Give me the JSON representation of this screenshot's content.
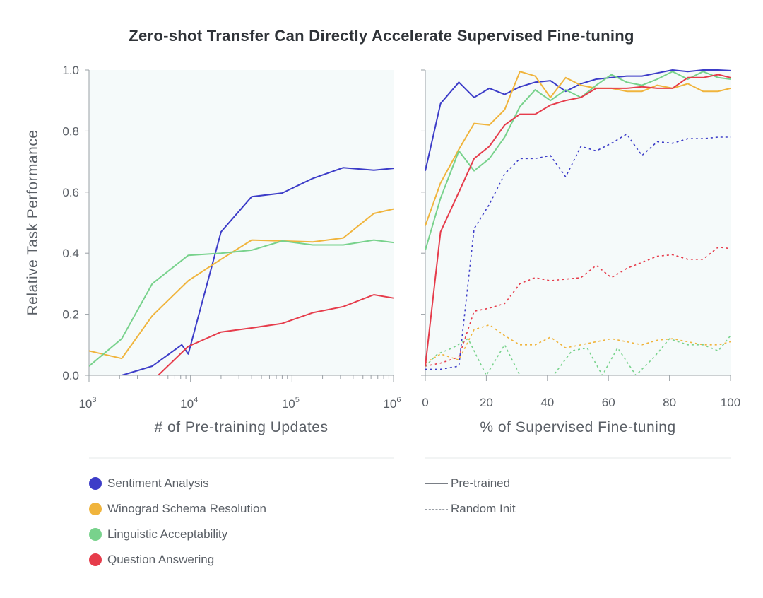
{
  "title": "Zero-shot Transfer Can Directly Accelerate Supervised Fine-tuning",
  "colors": {
    "sentiment": "#3c3cc8",
    "winograd": "#f0b43c",
    "linguistic": "#78d28c",
    "qa": "#e63c4b",
    "panel_bg": "#f5fafa",
    "axis": "#9aa0a6"
  },
  "chart_data": [
    {
      "type": "line",
      "panel": "left",
      "xscale": "log",
      "xlim": [
        1000,
        1000000
      ],
      "ylim": [
        0,
        1
      ],
      "xlabel": "# of Pre-training Updates",
      "ylabel": "Relative Task Performance",
      "xticks": [
        {
          "value": 1000,
          "base": "10",
          "exp": "3"
        },
        {
          "value": 10000,
          "base": "10",
          "exp": "4"
        },
        {
          "value": 100000,
          "base": "10",
          "exp": "5"
        },
        {
          "value": 1000000,
          "base": "10",
          "exp": "6"
        }
      ],
      "yticks": [
        "0.0",
        "0.2",
        "0.4",
        "0.6",
        "0.8",
        "1.0"
      ],
      "series": [
        {
          "name": "Sentiment Analysis",
          "key": "sentiment",
          "style": "solid",
          "x": [
            2100,
            4200,
            8200,
            9500,
            20000,
            40000,
            80000,
            160000,
            320000,
            640000,
            1000000
          ],
          "y": [
            0.0,
            0.03,
            0.1,
            0.07,
            0.47,
            0.585,
            0.597,
            0.645,
            0.68,
            0.672,
            0.678
          ]
        },
        {
          "name": "Winograd Schema Resolution",
          "key": "winograd",
          "style": "solid",
          "x": [
            1000,
            2100,
            4200,
            9500,
            20000,
            40000,
            80000,
            160000,
            320000,
            640000,
            1000000
          ],
          "y": [
            0.08,
            0.055,
            0.195,
            0.31,
            0.38,
            0.443,
            0.44,
            0.437,
            0.45,
            0.53,
            0.545
          ]
        },
        {
          "name": "Linguistic Acceptability",
          "key": "linguistic",
          "style": "solid",
          "x": [
            1000,
            2100,
            4200,
            9500,
            20000,
            40000,
            80000,
            160000,
            320000,
            640000,
            1000000
          ],
          "y": [
            0.03,
            0.12,
            0.3,
            0.393,
            0.4,
            0.41,
            0.44,
            0.427,
            0.427,
            0.443,
            0.435
          ]
        },
        {
          "name": "Question Answering",
          "key": "qa",
          "style": "solid",
          "x": [
            4800,
            9500,
            20000,
            40000,
            80000,
            160000,
            320000,
            640000,
            1000000
          ],
          "y": [
            0.0,
            0.095,
            0.142,
            0.155,
            0.17,
            0.205,
            0.225,
            0.264,
            0.253
          ]
        }
      ]
    },
    {
      "type": "line",
      "panel": "right",
      "xscale": "linear",
      "xlim": [
        0,
        100
      ],
      "ylim": [
        0,
        1
      ],
      "xlabel": "% of Supervised Fine-tuning",
      "xticks": [
        "0",
        "20",
        "40",
        "60",
        "80",
        "100"
      ],
      "series": [
        {
          "name": "Sentiment Analysis",
          "key": "sentiment",
          "style": "solid",
          "x": [
            0,
            5,
            11,
            16,
            21,
            26,
            31,
            36,
            41,
            46,
            51,
            56,
            61,
            66,
            71,
            76,
            81,
            86,
            91,
            96,
            100
          ],
          "y": [
            0.67,
            0.89,
            0.96,
            0.91,
            0.94,
            0.92,
            0.945,
            0.96,
            0.965,
            0.93,
            0.955,
            0.97,
            0.975,
            0.98,
            0.98,
            0.99,
            1.0,
            0.995,
            1.0,
            1.0,
            0.998
          ]
        },
        {
          "name": "Winograd Schema Resolution",
          "key": "winograd",
          "style": "solid",
          "x": [
            0,
            5,
            11,
            16,
            21,
            26,
            31,
            36,
            41,
            46,
            51,
            56,
            61,
            66,
            71,
            76,
            81,
            86,
            91,
            96,
            100
          ],
          "y": [
            0.49,
            0.63,
            0.74,
            0.825,
            0.82,
            0.87,
            0.995,
            0.98,
            0.91,
            0.975,
            0.95,
            0.94,
            0.94,
            0.93,
            0.93,
            0.95,
            0.94,
            0.955,
            0.93,
            0.93,
            0.94
          ]
        },
        {
          "name": "Linguistic Acceptability",
          "key": "linguistic",
          "style": "solid",
          "x": [
            0,
            5,
            11,
            16,
            21,
            26,
            31,
            36,
            41,
            46,
            51,
            56,
            61,
            66,
            71,
            76,
            81,
            86,
            91,
            96,
            100
          ],
          "y": [
            0.41,
            0.58,
            0.735,
            0.67,
            0.71,
            0.78,
            0.88,
            0.935,
            0.9,
            0.935,
            0.91,
            0.95,
            0.985,
            0.96,
            0.95,
            0.97,
            0.995,
            0.97,
            0.995,
            0.975,
            0.97
          ]
        },
        {
          "name": "Question Answering",
          "key": "qa",
          "style": "solid",
          "x": [
            0,
            5,
            11,
            16,
            21,
            26,
            31,
            36,
            41,
            46,
            51,
            56,
            61,
            66,
            71,
            76,
            81,
            86,
            91,
            96,
            100
          ],
          "y": [
            0.03,
            0.47,
            0.6,
            0.71,
            0.75,
            0.82,
            0.855,
            0.855,
            0.885,
            0.9,
            0.91,
            0.94,
            0.94,
            0.94,
            0.945,
            0.94,
            0.94,
            0.975,
            0.975,
            0.985,
            0.975
          ]
        },
        {
          "name": "Sentiment Analysis",
          "key": "sentiment",
          "style": "dashed",
          "x": [
            0,
            5,
            11,
            16,
            21,
            26,
            31,
            36,
            41,
            46,
            51,
            56,
            61,
            66,
            71,
            76,
            81,
            86,
            91,
            96,
            100
          ],
          "y": [
            0.02,
            0.02,
            0.03,
            0.48,
            0.56,
            0.66,
            0.71,
            0.71,
            0.72,
            0.65,
            0.75,
            0.735,
            0.76,
            0.79,
            0.72,
            0.765,
            0.76,
            0.775,
            0.775,
            0.78,
            0.78
          ]
        },
        {
          "name": "Question Answering",
          "key": "qa",
          "style": "dashed",
          "x": [
            0,
            5,
            11,
            16,
            21,
            26,
            31,
            36,
            41,
            46,
            51,
            56,
            61,
            66,
            71,
            76,
            81,
            86,
            91,
            96,
            100
          ],
          "y": [
            0.03,
            0.04,
            0.06,
            0.21,
            0.22,
            0.235,
            0.3,
            0.32,
            0.31,
            0.315,
            0.32,
            0.36,
            0.32,
            0.35,
            0.37,
            0.39,
            0.395,
            0.38,
            0.38,
            0.42,
            0.415
          ]
        },
        {
          "name": "Winograd Schema Resolution",
          "key": "winograd",
          "style": "dashed",
          "x": [
            0,
            5,
            11,
            16,
            21,
            26,
            31,
            36,
            41,
            46,
            51,
            56,
            61,
            66,
            71,
            76,
            81,
            86,
            91,
            96,
            100
          ],
          "y": [
            0.04,
            0.07,
            0.05,
            0.15,
            0.165,
            0.13,
            0.1,
            0.1,
            0.125,
            0.09,
            0.1,
            0.11,
            0.12,
            0.11,
            0.1,
            0.115,
            0.12,
            0.11,
            0.1,
            0.1,
            0.11
          ]
        },
        {
          "name": "Linguistic Acceptability",
          "key": "linguistic",
          "style": "dashed",
          "x": [
            0,
            4,
            9,
            14,
            20,
            26,
            31,
            36,
            42,
            48,
            53,
            58,
            63,
            69,
            75,
            80,
            86,
            91,
            96,
            100
          ],
          "y": [
            0.03,
            0.07,
            0.09,
            0.12,
            0.0,
            0.1,
            0.0,
            0.0,
            0.0,
            0.08,
            0.09,
            0.0,
            0.09,
            0.0,
            0.06,
            0.12,
            0.1,
            0.1,
            0.08,
            0.13
          ]
        }
      ]
    }
  ],
  "legend": {
    "tasks": [
      {
        "label": "Sentiment Analysis",
        "key": "sentiment"
      },
      {
        "label": "Winograd Schema Resolution",
        "key": "winograd"
      },
      {
        "label": "Linguistic Acceptability",
        "key": "linguistic"
      },
      {
        "label": "Question Answering",
        "key": "qa"
      }
    ],
    "styles": [
      {
        "label": "Pre-trained",
        "style": "solid"
      },
      {
        "label": "Random Init",
        "style": "dashed"
      }
    ]
  }
}
